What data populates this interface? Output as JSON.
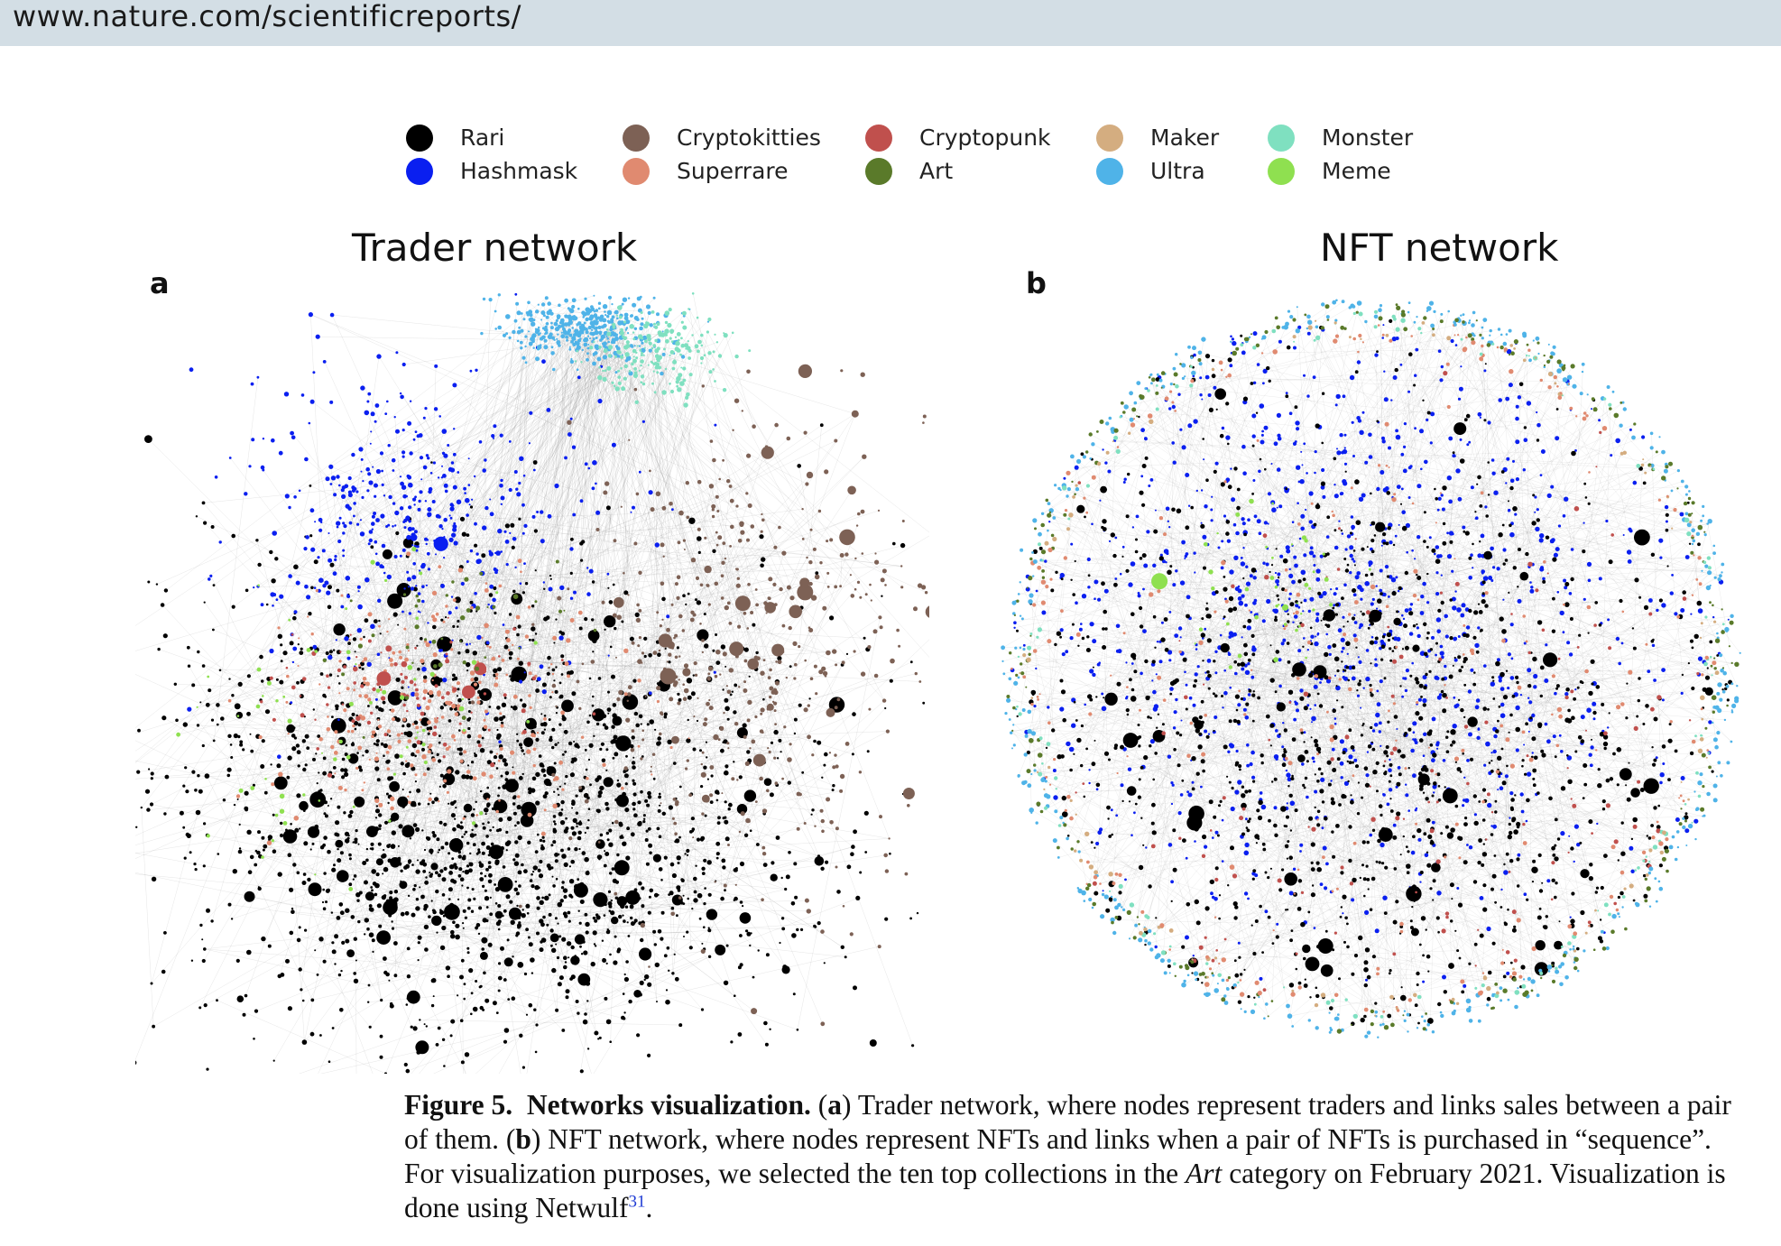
{
  "browser": {
    "url": "www.nature.com/scientificreports/"
  },
  "legend": [
    {
      "label": "Rari",
      "color": "#000000"
    },
    {
      "label": "Hashmask",
      "color": "#0a1ff0"
    },
    {
      "label": "Cryptokitties",
      "color": "#7d6155"
    },
    {
      "label": "Superrare",
      "color": "#e08a70"
    },
    {
      "label": "Cryptopunk",
      "color": "#c0504d"
    },
    {
      "label": "Art",
      "color": "#5a7a2a"
    },
    {
      "label": "Maker",
      "color": "#d4ad80"
    },
    {
      "label": "Ultra",
      "color": "#4fb3e8"
    },
    {
      "label": "Monster",
      "color": "#7fe0c0"
    },
    {
      "label": "Meme",
      "color": "#8fe050"
    }
  ],
  "panels": {
    "a": {
      "letter": "a",
      "title": "Trader network"
    },
    "b": {
      "letter": "b",
      "title": "NFT network"
    }
  },
  "caption": {
    "figure_label": "Figure 5.",
    "heading": "Networks visualization.",
    "open_a": " (",
    "a": "a",
    "text_a": ") Trader network, where nodes represent traders and links sales between a pair of them. (",
    "b": "b",
    "text_b": ") NFT network, where nodes represent NFTs and links when a pair of NFTs is purchased in “sequence”. For visualization purposes, we selected the ten top collections in the ",
    "art": "Art",
    "text_c": " category on February 2021. Visualization is done using Netwulf",
    "cite": "31",
    "end": "."
  }
}
